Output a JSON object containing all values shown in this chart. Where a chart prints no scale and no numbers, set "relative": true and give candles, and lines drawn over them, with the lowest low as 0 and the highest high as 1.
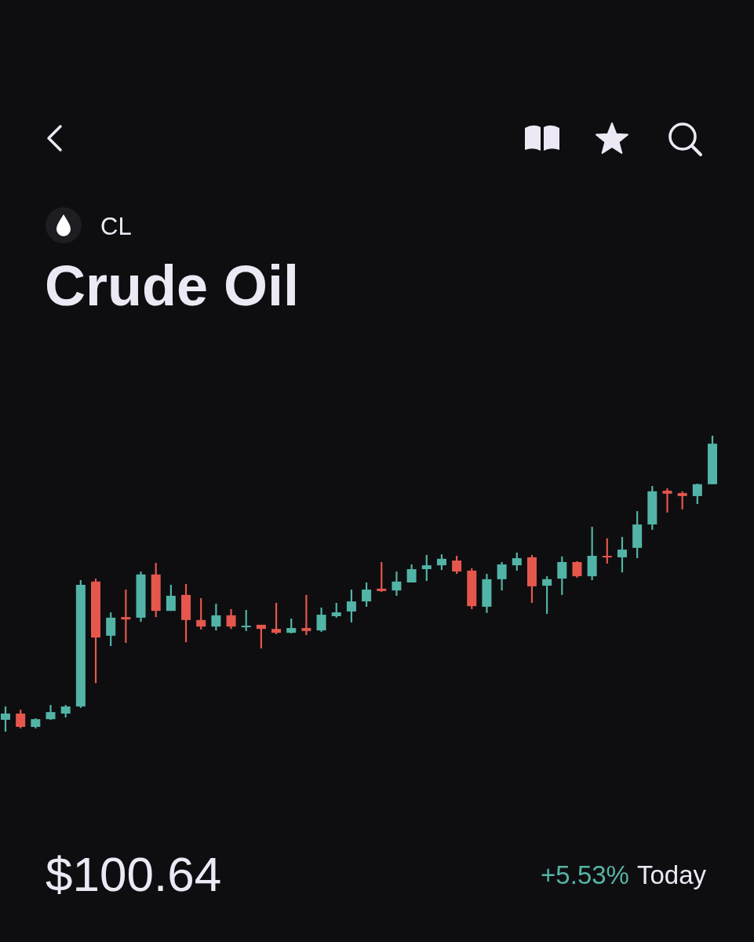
{
  "chart_data": {
    "type": "candlestick",
    "title": "Crude Oil",
    "subtitle": "CL",
    "relative": true,
    "tick_labels": false,
    "categories": [
      null,
      null,
      null,
      null,
      null,
      null,
      null,
      null,
      null,
      null,
      null,
      null,
      null,
      null,
      null,
      null,
      null,
      null,
      null,
      null,
      null,
      null,
      null,
      null,
      null,
      null,
      null,
      null,
      null,
      null,
      null,
      null,
      null,
      null,
      null,
      null,
      null,
      null,
      null,
      null,
      null,
      null,
      null,
      null,
      null,
      null,
      null,
      null
    ],
    "ohlc": [
      [
        0.04,
        0.085,
        0,
        0.061
      ],
      [
        0.061,
        0.074,
        0.011,
        0.016
      ],
      [
        0.016,
        0.045,
        0.011,
        0.042
      ],
      [
        0.042,
        0.09,
        0.04,
        0.066
      ],
      [
        0.061,
        0.09,
        0.048,
        0.085
      ],
      [
        0.085,
        0.512,
        0.08,
        0.496
      ],
      [
        0.507,
        0.517,
        0.164,
        0.318
      ],
      [
        0.324,
        0.403,
        0.289,
        0.385
      ],
      [
        0.387,
        0.48,
        0.3,
        0.379
      ],
      [
        0.385,
        0.541,
        0.371,
        0.531
      ],
      [
        0.531,
        0.57,
        0.387,
        0.408
      ],
      [
        0.408,
        0.496,
        0.408,
        0.459
      ],
      [
        0.462,
        0.499,
        0.302,
        0.377
      ],
      [
        0.377,
        0.451,
        0.345,
        0.355
      ],
      [
        0.355,
        0.432,
        0.342,
        0.393
      ],
      [
        0.393,
        0.414,
        0.347,
        0.355
      ],
      [
        0.353,
        0.411,
        0.34,
        0.358
      ],
      [
        0.361,
        0.361,
        0.281,
        0.347
      ],
      [
        0.347,
        0.435,
        0.329,
        0.334
      ],
      [
        0.334,
        0.382,
        0.332,
        0.35
      ],
      [
        0.35,
        0.462,
        0.326,
        0.34
      ],
      [
        0.342,
        0.419,
        0.337,
        0.395
      ],
      [
        0.39,
        0.435,
        0.385,
        0.403
      ],
      [
        0.406,
        0.48,
        0.369,
        0.44
      ],
      [
        0.44,
        0.504,
        0.422,
        0.48
      ],
      [
        0.483,
        0.573,
        0.472,
        0.475
      ],
      [
        0.477,
        0.541,
        0.459,
        0.507
      ],
      [
        0.504,
        0.565,
        0.504,
        0.549
      ],
      [
        0.549,
        0.597,
        0.509,
        0.562
      ],
      [
        0.562,
        0.599,
        0.546,
        0.584
      ],
      [
        0.578,
        0.594,
        0.533,
        0.541
      ],
      [
        0.544,
        0.552,
        0.414,
        0.424
      ],
      [
        0.422,
        0.533,
        0.401,
        0.515
      ],
      [
        0.515,
        0.573,
        0.477,
        0.565
      ],
      [
        0.562,
        0.605,
        0.544,
        0.586
      ],
      [
        0.589,
        0.597,
        0.435,
        0.491
      ],
      [
        0.493,
        0.525,
        0.398,
        0.515
      ],
      [
        0.517,
        0.592,
        0.462,
        0.573
      ],
      [
        0.573,
        0.576,
        0.52,
        0.525
      ],
      [
        0.525,
        0.692,
        0.512,
        0.594
      ],
      [
        0.594,
        0.653,
        0.568,
        0.589
      ],
      [
        0.589,
        0.658,
        0.538,
        0.615
      ],
      [
        0.621,
        0.745,
        0.586,
        0.7
      ],
      [
        0.7,
        0.83,
        0.682,
        0.812
      ],
      [
        0.814,
        0.822,
        0.74,
        0.804
      ],
      [
        0.806,
        0.812,
        0.751,
        0.796
      ],
      [
        0.796,
        0.838,
        0.769,
        0.836
      ],
      [
        0.836,
        1,
        0.836,
        0.973
      ]
    ],
    "colors": [
      "#52b4a7",
      "#e5574d",
      "#52b4a7",
      "#52b4a7",
      "#52b4a7",
      "#52b4a7",
      "#e5574d",
      "#52b4a7",
      "#e5574d",
      "#52b4a7",
      "#e5574d",
      "#52b4a7",
      "#e5574d",
      "#e5574d",
      "#52b4a7",
      "#e5574d",
      "#52b4a7",
      "#e5574d",
      "#e5574d",
      "#52b4a7",
      "#e5574d",
      "#52b4a7",
      "#52b4a7",
      "#52b4a7",
      "#52b4a7",
      "#e5574d",
      "#52b4a7",
      "#52b4a7",
      "#52b4a7",
      "#52b4a7",
      "#e5574d",
      "#e5574d",
      "#52b4a7",
      "#52b4a7",
      "#52b4a7",
      "#e5574d",
      "#52b4a7",
      "#52b4a7",
      "#e5574d",
      "#52b4a7",
      "#e5574d",
      "#52b4a7",
      "#52b4a7",
      "#52b4a7",
      "#e5574d",
      "#e5574d",
      "#52b4a7",
      "#52b4a7"
    ],
    "annotations": [
      "$100.64",
      "+5.53%",
      "Today"
    ]
  }
}
